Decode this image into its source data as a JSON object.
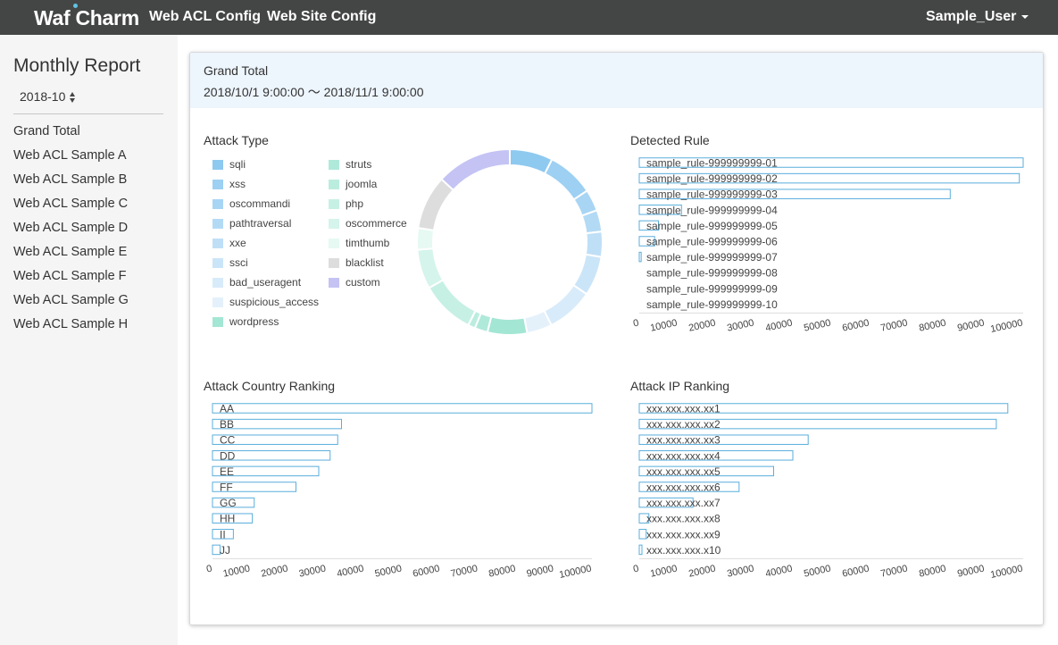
{
  "nav": {
    "logo": "Waf Charm",
    "links": [
      "Web ACL Config",
      "Web Site Config"
    ],
    "user": "Sample_User"
  },
  "sidebar": {
    "title": "Monthly Report",
    "month": "2018-10",
    "items": [
      "Grand Total",
      "Web ACL Sample A",
      "Web ACL Sample B",
      "Web ACL Sample C",
      "Web ACL Sample D",
      "Web ACL Sample E",
      "Web ACL Sample F",
      "Web ACL Sample G",
      "Web ACL Sample H"
    ]
  },
  "panel": {
    "title": "Grand Total",
    "range": "2018/10/1 9:00:00 〜 2018/11/1 9:00:00"
  },
  "colors": {
    "navbar": "#444645",
    "bar_stroke": "#5aaedc",
    "header_bg": "#edf5fd"
  },
  "chart_data": [
    {
      "id": "attack-type",
      "type": "pie",
      "title": "Attack Type",
      "legend": "left",
      "categories": [
        "sqli",
        "xss",
        "oscommandi",
        "pathtraversal",
        "xxe",
        "ssci",
        "bad_useragent",
        "suspicious_access",
        "wordpress",
        "struts",
        "joomla",
        "php",
        "oscommerce",
        "timthumb",
        "blacklist",
        "custom"
      ],
      "colors": [
        "#8ec9f0",
        "#9dd0f2",
        "#a8d5f4",
        "#b3daf5",
        "#bfdff7",
        "#cbe5f8",
        "#d8ebfa",
        "#e4f1fb",
        "#a3e6d4",
        "#afe9d9",
        "#bbeddf",
        "#c7f0e5",
        "#d5f4eb",
        "#e6f9f3",
        "#dddddd",
        "#c4c3f4"
      ],
      "values": [
        6,
        6.5,
        3,
        3,
        3.5,
        5.5,
        6.5,
        3.5,
        5.5,
        1.8,
        1,
        7.5,
        5.5,
        3,
        7.5,
        10.5
      ]
    },
    {
      "id": "detected-rule",
      "type": "bar",
      "title": "Detected Rule",
      "categories": [
        "sample_rule-999999999-01",
        "sample_rule-999999999-02",
        "sample_rule-999999999-03",
        "sample_rule-999999999-04",
        "sample_rule-999999999-05",
        "sample_rule-999999999-06",
        "sample_rule-999999999-07",
        "sample_rule-999999999-08",
        "sample_rule-999999999-09",
        "sample_rule-999999999-10"
      ],
      "values": [
        100000,
        99000,
        81000,
        11000,
        5000,
        4000,
        500,
        0,
        0,
        0
      ],
      "xlim": [
        0,
        100000
      ],
      "ticks": [
        0,
        10000,
        20000,
        30000,
        40000,
        50000,
        60000,
        70000,
        80000,
        90000,
        100000
      ]
    },
    {
      "id": "attack-country",
      "type": "bar",
      "title": "Attack Country Ranking",
      "categories": [
        "AA",
        "BB",
        "CC",
        "DD",
        "EE",
        "FF",
        "GG",
        "HH",
        "II",
        "JJ"
      ],
      "values": [
        100000,
        34000,
        33000,
        31000,
        28000,
        22000,
        11000,
        10500,
        5500,
        2000
      ],
      "xlim": [
        0,
        100000
      ],
      "ticks": [
        0,
        10000,
        20000,
        30000,
        40000,
        50000,
        60000,
        70000,
        80000,
        90000,
        100000
      ]
    },
    {
      "id": "attack-ip",
      "type": "bar",
      "title": "Attack IP Ranking",
      "categories": [
        "xxx.xxx.xxx.xx1",
        "xxx.xxx.xxx.xx2",
        "xxx.xxx.xxx.xx3",
        "xxx.xxx.xxx.xx4",
        "xxx.xxx.xxx.xx5",
        "xxx.xxx.xxx.xx6",
        "xxx.xxx.xxx.xx7",
        "xxx.xxx.xxx.xx8",
        "xxx.xxx.xxx.xx9",
        "xxx.xxx.xxx.x10"
      ],
      "values": [
        96000,
        93000,
        44000,
        40000,
        35000,
        26000,
        14000,
        2500,
        1800,
        700
      ],
      "xlim": [
        0,
        100000
      ],
      "ticks": [
        0,
        10000,
        20000,
        30000,
        40000,
        50000,
        60000,
        70000,
        80000,
        90000,
        100000
      ]
    }
  ]
}
